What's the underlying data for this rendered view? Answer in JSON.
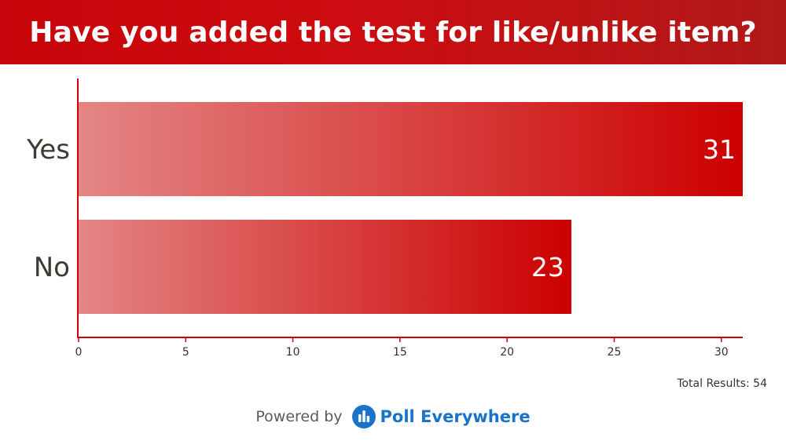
{
  "header": {
    "title": "Have you added the test for like/unlike item?"
  },
  "footer": {
    "total_label": "Total Results: 54",
    "powered_by": "Powered by",
    "brand": "Poll Everywhere"
  },
  "colors": {
    "bar_start": "#e48685",
    "bar_end": "#cc0000",
    "axis": "#cc0000"
  },
  "chart_data": {
    "type": "bar",
    "orientation": "horizontal",
    "title": "Have you added the test for like/unlike item?",
    "categories": [
      "Yes",
      "No"
    ],
    "values": [
      31,
      23
    ],
    "xlim": [
      0,
      31
    ],
    "ticks": [
      0,
      5,
      10,
      15,
      20,
      25,
      30
    ],
    "grid": false,
    "legend": "none"
  }
}
